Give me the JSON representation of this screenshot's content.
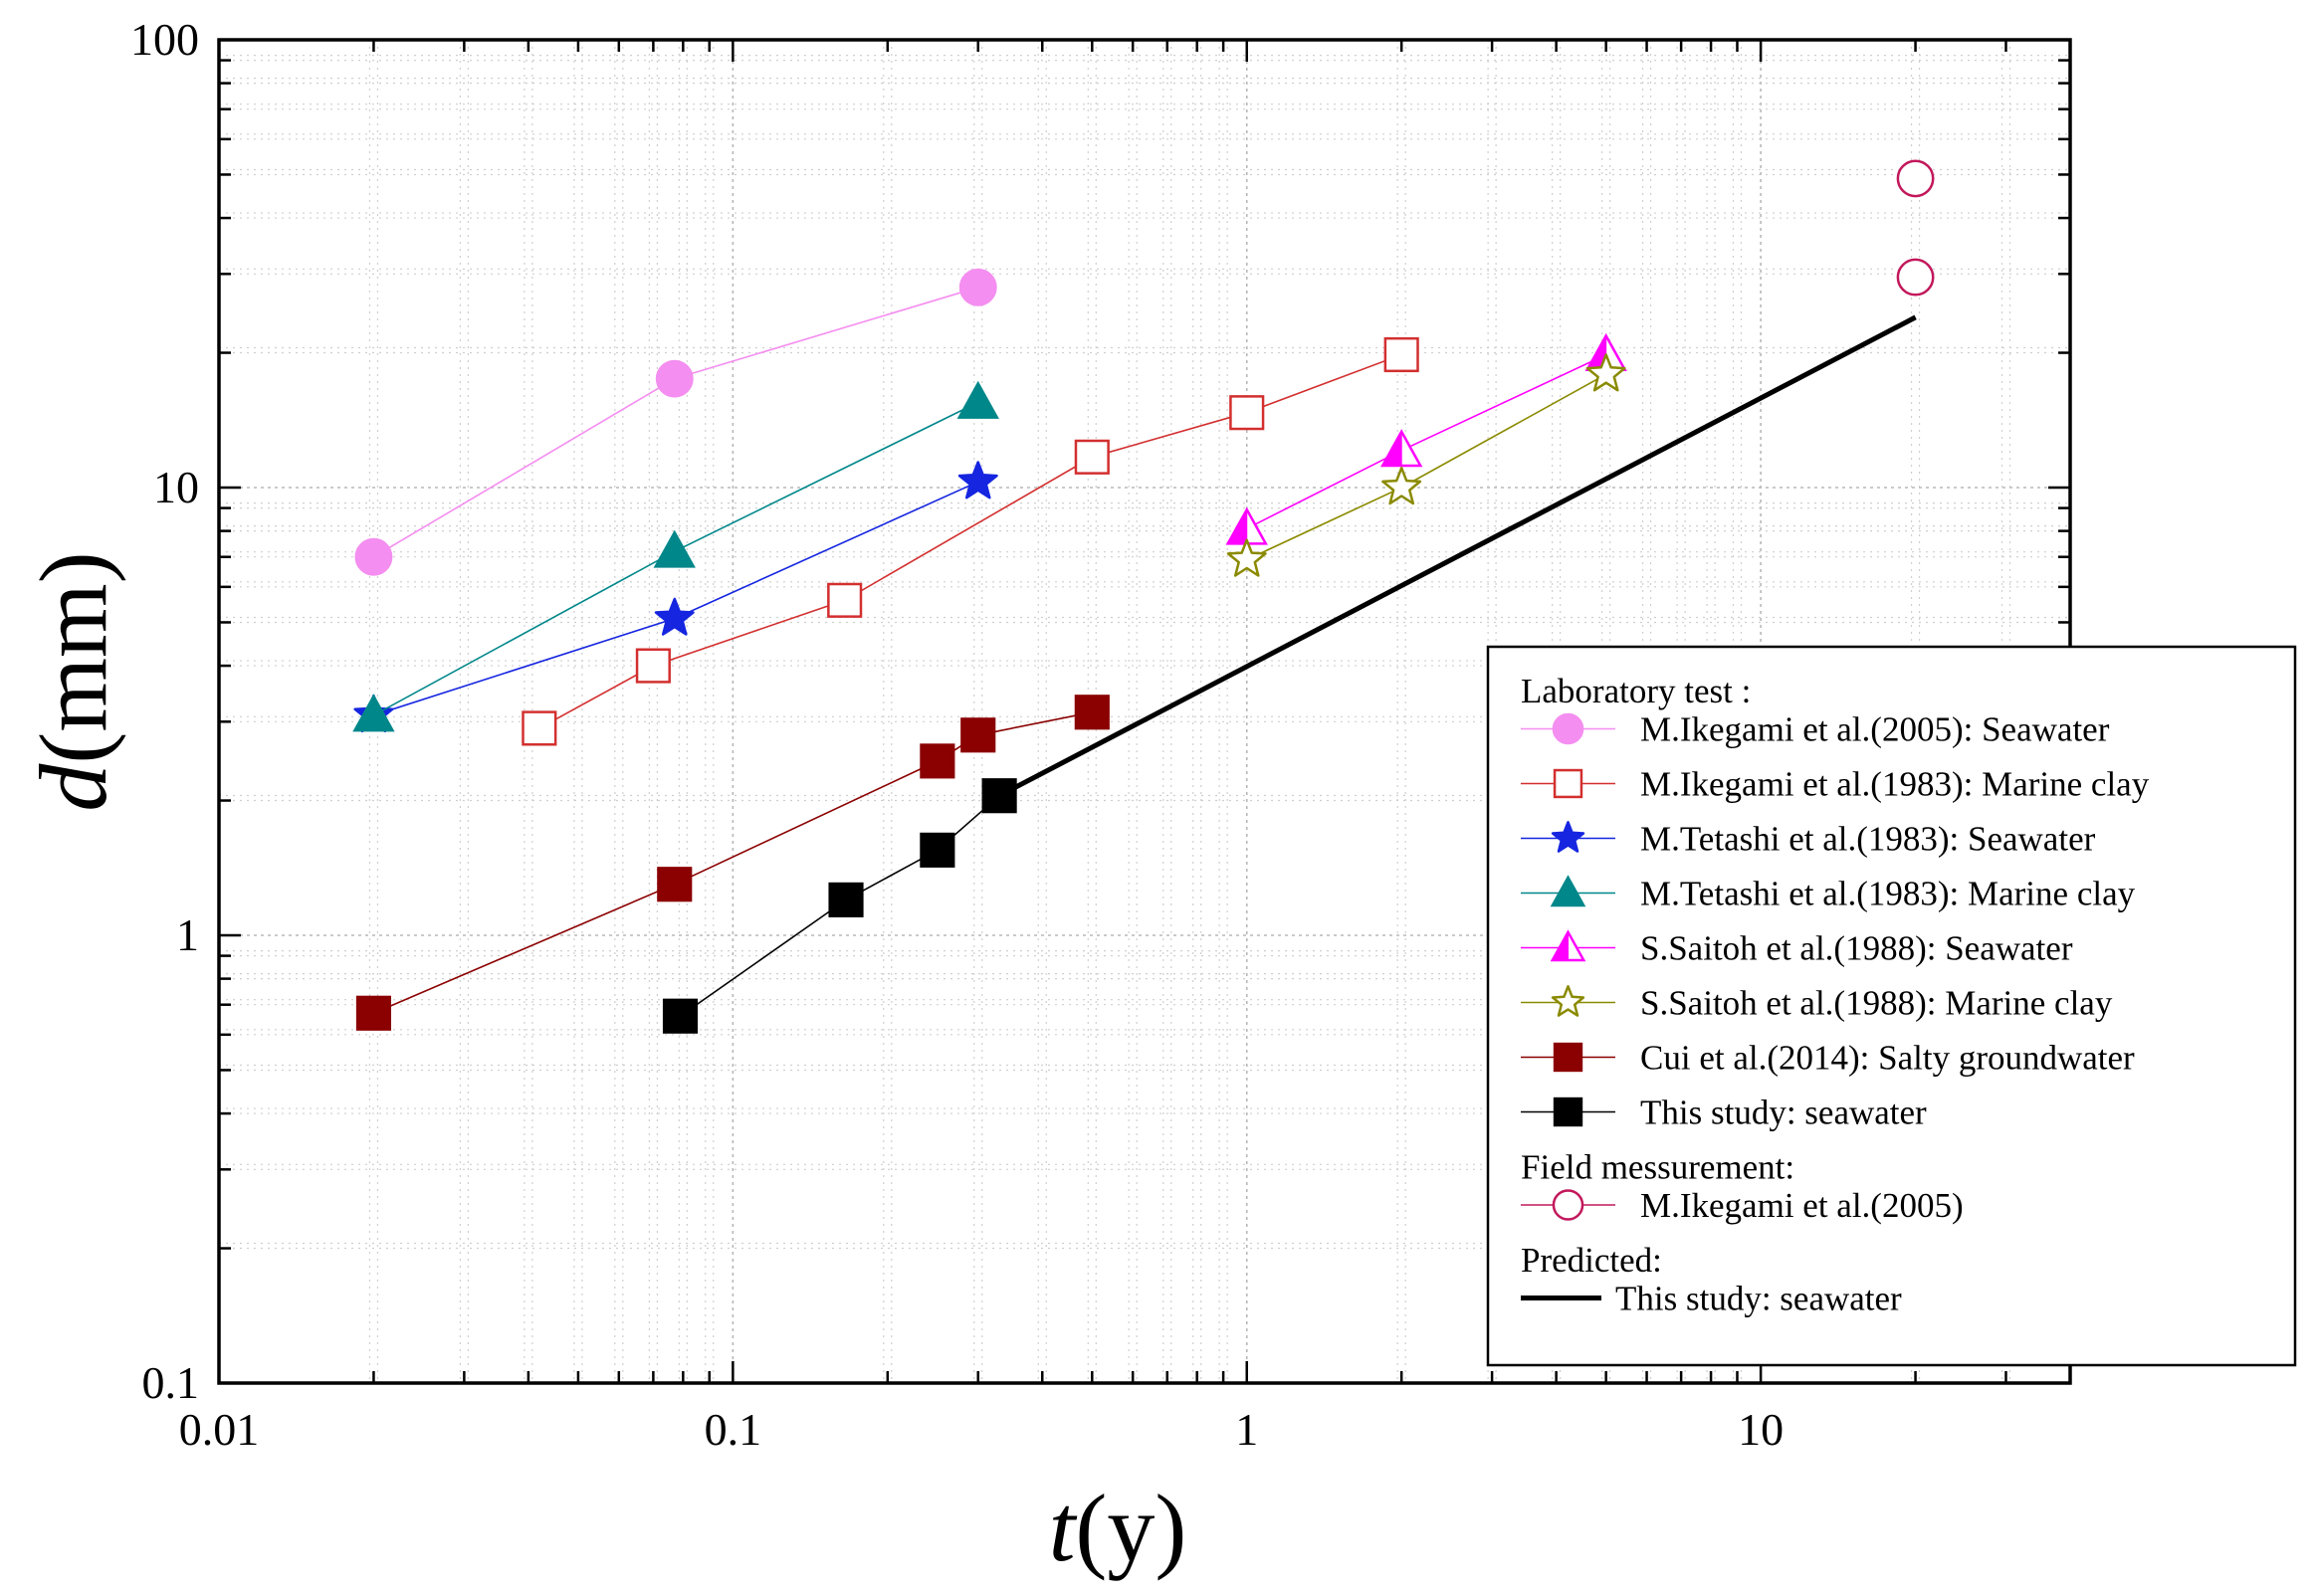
{
  "chart_data": {
    "type": "scatter",
    "xscale": "log",
    "yscale": "log",
    "xlim": [
      0.01,
      40
    ],
    "ylim": [
      0.1,
      100
    ],
    "xlabel_italic": "t",
    "xlabel_rest": "(y)",
    "ylabel_italic": "d",
    "ylabel_rest": "(mm)",
    "grid": true,
    "legend_position": "bottom-right",
    "x_ticks": [
      {
        "value": 0.01,
        "label": "0.01"
      },
      {
        "value": 0.1,
        "label": "0.1"
      },
      {
        "value": 1,
        "label": "1"
      },
      {
        "value": 10,
        "label": "10"
      }
    ],
    "y_ticks": [
      {
        "value": 0.1,
        "label": "0.1"
      },
      {
        "value": 1,
        "label": "1"
      },
      {
        "value": 10,
        "label": "10"
      },
      {
        "value": 100,
        "label": "100"
      }
    ],
    "series": [
      {
        "name": "M.Ikegami et al.(2005): Seawater",
        "group": "Laboratory test :",
        "marker": "circle",
        "filled": true,
        "color": "#f48ef0",
        "line": true,
        "x": [
          0.02,
          0.077,
          0.3
        ],
        "y": [
          7,
          17.5,
          28
        ]
      },
      {
        "name": "M.Ikegami et al.(1983): Marine clay",
        "group": "Laboratory test :",
        "marker": "square",
        "filled": false,
        "color": "#d32f2f",
        "line": true,
        "x": [
          0.042,
          0.07,
          0.165,
          0.5,
          1,
          2
        ],
        "y": [
          2.9,
          4,
          5.6,
          11.7,
          14.7,
          19.8
        ]
      },
      {
        "name": "M.Tetashi et al.(1983): Seawater",
        "group": "Laboratory test :",
        "marker": "star",
        "filled": true,
        "color": "#1525e0",
        "line": true,
        "x": [
          0.02,
          0.077,
          0.3
        ],
        "y": [
          3.1,
          5.1,
          10.3
        ]
      },
      {
        "name": "M.Tetashi et al.(1983): Marine clay",
        "group": "Laboratory test :",
        "marker": "triangle",
        "filled": true,
        "color": "#00878a",
        "line": true,
        "x": [
          0.02,
          0.077,
          0.3
        ],
        "y": [
          3.1,
          7.2,
          15.5
        ]
      },
      {
        "name": "S.Saitoh et al.(1988): Seawater",
        "group": "Laboratory test :",
        "marker": "triangle-half",
        "filled": true,
        "color": "#ff00ff",
        "line": true,
        "x": [
          1,
          2,
          5
        ],
        "y": [
          8.1,
          12.1,
          19.8
        ]
      },
      {
        "name": "S.Saitoh et al.(1988): Marine clay",
        "group": "Laboratory test :",
        "marker": "star",
        "filled": false,
        "color": "#8a8a00",
        "line": true,
        "x": [
          1,
          2,
          5
        ],
        "y": [
          6.9,
          10,
          17.9
        ]
      },
      {
        "name": "Cui et al.(2014): Salty groundwater",
        "group": "Laboratory test :",
        "marker": "square",
        "filled": true,
        "color": "#8b0000",
        "line": true,
        "x": [
          0.02,
          0.077,
          0.25,
          0.3,
          0.5
        ],
        "y": [
          0.67,
          1.3,
          2.45,
          2.8,
          3.15
        ]
      },
      {
        "name": "This study: seawater",
        "group": "Laboratory test :",
        "marker": "square",
        "filled": true,
        "color": "#000000",
        "line": true,
        "x": [
          0.079,
          0.166,
          0.25,
          0.33
        ],
        "y": [
          0.66,
          1.2,
          1.55,
          2.05
        ]
      },
      {
        "name": "M.Ikegami et al.(2005)",
        "group": "Field messurement:",
        "marker": "circle",
        "filled": false,
        "color": "#c2185b",
        "line": false,
        "x": [
          20,
          20
        ],
        "y": [
          49,
          29.5
        ]
      },
      {
        "name": "This study: seawater",
        "group": "Predicted:",
        "marker": "none",
        "filled": false,
        "color": "#000000",
        "line": true,
        "line_width": "thick",
        "x": [
          0.33,
          20
        ],
        "y": [
          2.05,
          24
        ]
      }
    ],
    "legend": {
      "heading_lab": "Laboratory test :",
      "heading_field": "Field messurement:",
      "heading_pred": "Predicted:"
    }
  }
}
